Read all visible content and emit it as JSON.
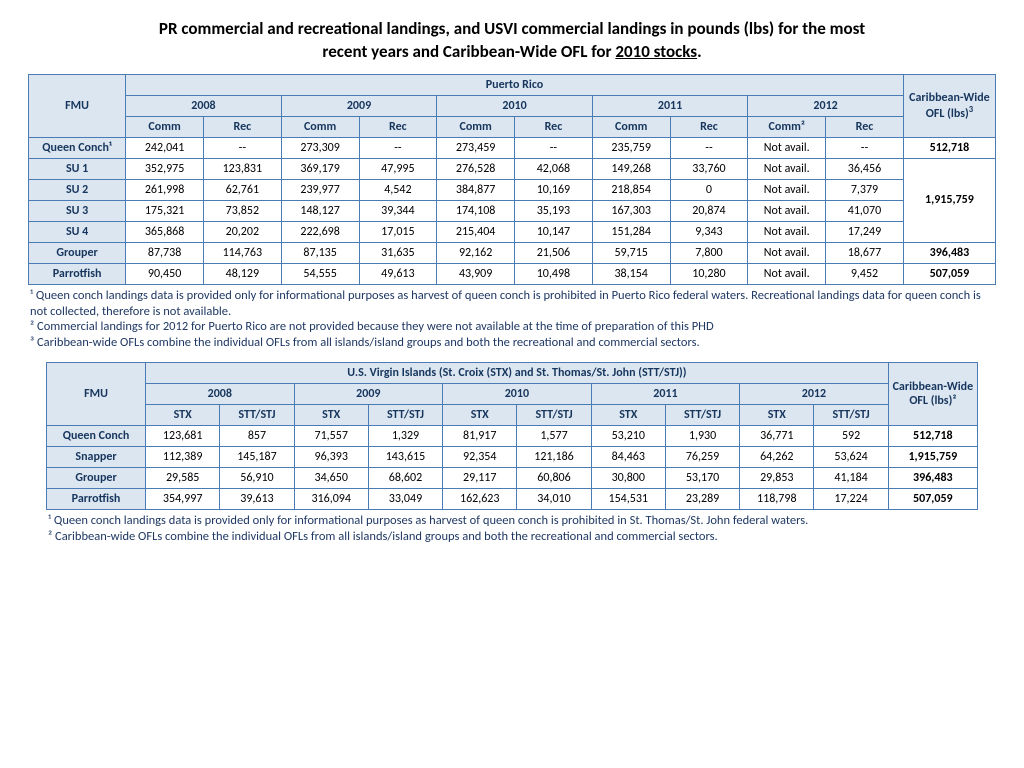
{
  "title_line1": "PR commercial and recreational landings, and USVI commercial landings in pounds (lbs) for the most",
  "title_line2a": "recent years and Caribbean-Wide OFL for ",
  "title_line2b": "2010 stocks",
  "title_line2c": ".",
  "t1": {
    "region": "Puerto Rico",
    "fmu": "FMU",
    "years": [
      "2008",
      "2009",
      "2010",
      "2011",
      "2012"
    ],
    "subcols": [
      "Comm",
      "Rec",
      "Comm",
      "Rec",
      "Comm",
      "Rec",
      "Comm",
      "Rec",
      "Comm²",
      "Rec"
    ],
    "ofl_label_a": "Caribbean-Wide OFL (lbs)",
    "rows": [
      {
        "label": "Queen Conch¹",
        "cells": [
          "242,041",
          "--",
          "273,309",
          "--",
          "273,459",
          "--",
          "235,759",
          "--",
          "Not avail.",
          "--"
        ],
        "ofl": "512,718"
      },
      {
        "label": "SU 1",
        "cells": [
          "352,975",
          "123,831",
          "369,179",
          "47,995",
          "276,528",
          "42,068",
          "149,268",
          "33,760",
          "Not avail.",
          "36,456"
        ],
        "ofl": ""
      },
      {
        "label": "SU 2",
        "cells": [
          "261,998",
          "62,761",
          "239,977",
          "4,542",
          "384,877",
          "10,169",
          "218,854",
          "0",
          "Not avail.",
          "7,379"
        ],
        "ofl": ""
      },
      {
        "label": "SU 3",
        "cells": [
          "175,321",
          "73,852",
          "148,127",
          "39,344",
          "174,108",
          "35,193",
          "167,303",
          "20,874",
          "Not avail.",
          "41,070"
        ],
        "ofl": ""
      },
      {
        "label": "SU 4",
        "cells": [
          "365,868",
          "20,202",
          "222,698",
          "17,015",
          "215,404",
          "10,147",
          "151,284",
          "9,343",
          "Not avail.",
          "17,249"
        ],
        "ofl": ""
      },
      {
        "label": "Grouper",
        "cells": [
          "87,738",
          "114,763",
          "87,135",
          "31,635",
          "92,162",
          "21,506",
          "59,715",
          "7,800",
          "Not avail.",
          "18,677"
        ],
        "ofl": "396,483"
      },
      {
        "label": "Parrotfish",
        "cells": [
          "90,450",
          "48,129",
          "54,555",
          "49,613",
          "43,909",
          "10,498",
          "38,154",
          "10,280",
          "Not avail.",
          "9,452"
        ],
        "ofl": "507,059"
      }
    ],
    "su_group_ofl": "1,915,759"
  },
  "notes1": {
    "n1": "¹ Queen conch landings data is provided only for informational purposes as harvest of queen conch is prohibited in Puerto Rico federal waters.  Recreational landings data for queen conch is not collected, therefore is not available.",
    "n2": "²  Commercial landings for 2012 for Puerto Rico are not provided because they were not available at the time of preparation of this PHD",
    "n3": "³ Caribbean-wide OFLs combine the individual OFLs from all islands/island groups and both the recreational and commercial sectors."
  },
  "t2": {
    "region": "U.S. Virgin Islands (St. Croix (STX) and St. Thomas/St. John (STT/STJ))",
    "fmu": "FMU",
    "years": [
      "2008",
      "2009",
      "2010",
      "2011",
      "2012"
    ],
    "subcols": [
      "STX",
      "STT/STJ",
      "STX",
      "STT/STJ",
      "STX",
      "STT/STJ",
      "STX",
      "STT/STJ",
      "STX",
      "STT/STJ"
    ],
    "ofl_label": "Caribbean-Wide OFL (lbs)²",
    "rows": [
      {
        "label": "Queen Conch",
        "cells": [
          "123,681",
          "857",
          "71,557",
          "1,329",
          "81,917",
          "1,577",
          "53,210",
          "1,930",
          "36,771",
          "592"
        ],
        "ofl": "512,718"
      },
      {
        "label": "Snapper",
        "cells": [
          "112,389",
          "145,187",
          "96,393",
          "143,615",
          "92,354",
          "121,186",
          "84,463",
          "76,259",
          "64,262",
          "53,624"
        ],
        "ofl": "1,915,759"
      },
      {
        "label": "Grouper",
        "cells": [
          "29,585",
          "56,910",
          "34,650",
          "68,602",
          "29,117",
          "60,806",
          "30,800",
          "53,170",
          "29,853",
          "41,184"
        ],
        "ofl": "396,483"
      },
      {
        "label": "Parrotfish",
        "cells": [
          "354,997",
          "39,613",
          "316,094",
          "33,049",
          "162,623",
          "34,010",
          "154,531",
          "23,289",
          "118,798",
          "17,224"
        ],
        "ofl": "507,059"
      }
    ]
  },
  "notes2": {
    "n1": "¹ Queen conch landings data is provided only for informational purposes as harvest of queen conch is prohibited in St. Thomas/St. John federal waters.",
    "n2": "² Caribbean-wide OFLs combine the individual OFLs from all islands/island groups and both the recreational and commercial sectors."
  },
  "style": {
    "border_color": "#4a7bb5",
    "header_bg": "#dce6f1",
    "header_text": "#17365d",
    "body_bg": "#ffffff"
  }
}
